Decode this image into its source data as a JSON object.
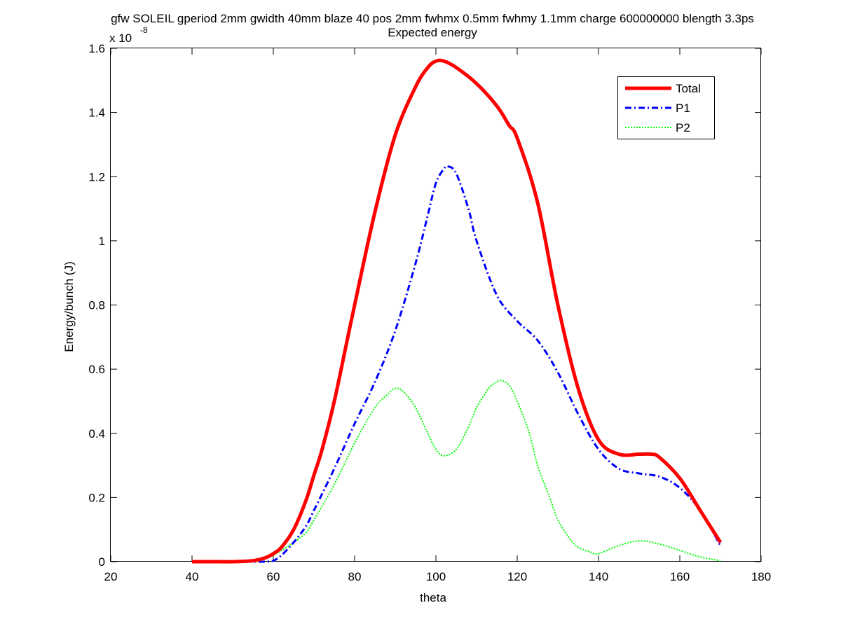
{
  "chart_data": {
    "type": "line",
    "title": "gfw SOLEIL gperiod 2mm gwidth 40mm blaze 40 pos 2mm fwhmx 0.5mm fwhmy 1.1mm charge 600000000 blength 3.3ps",
    "subtitle": "Expected energy",
    "xlabel": "theta",
    "ylabel": "Energy/bunch (J)",
    "y_exponent_label": "x 10",
    "y_exponent": "-8",
    "xlim": [
      20,
      180
    ],
    "ylim": [
      0,
      1.6
    ],
    "y_scale_factor": 1e-08,
    "x_ticks": [
      "20",
      "40",
      "60",
      "80",
      "100",
      "120",
      "140",
      "160",
      "180"
    ],
    "y_ticks": [
      "0",
      "0.2",
      "0.4",
      "0.6",
      "0.8",
      "1",
      "1.2",
      "1.4",
      "1.6"
    ],
    "grid": false,
    "legend_position": "top-right",
    "series": [
      {
        "name": "Total",
        "color": "#ff0000",
        "style": "solid",
        "x": [
          40,
          45,
          50,
          55,
          58,
          60,
          62,
          65,
          68,
          70,
          72,
          75,
          78,
          80,
          85,
          90,
          95,
          98,
          100,
          102,
          105,
          110,
          115,
          118,
          120,
          125,
          130,
          135,
          140,
          145,
          150,
          153,
          155,
          160,
          165,
          170
        ],
        "y": [
          0,
          0,
          0,
          0.003,
          0.012,
          0.025,
          0.045,
          0.1,
          0.19,
          0.27,
          0.35,
          0.5,
          0.68,
          0.8,
          1.09,
          1.33,
          1.48,
          1.54,
          1.56,
          1.56,
          1.54,
          1.49,
          1.42,
          1.36,
          1.32,
          1.12,
          0.8,
          0.54,
          0.38,
          0.335,
          0.335,
          0.335,
          0.325,
          0.26,
          0.16,
          0.06
        ]
      },
      {
        "name": "P1",
        "color": "#0000ff",
        "style": "dashdot",
        "x": [
          40,
          45,
          50,
          55,
          58,
          60,
          62,
          65,
          68,
          70,
          75,
          80,
          85,
          90,
          95,
          98,
          100,
          102,
          103,
          105,
          108,
          110,
          115,
          120,
          125,
          130,
          135,
          140,
          145,
          150,
          155,
          160,
          165,
          170
        ],
        "y": [
          0,
          0,
          0,
          0,
          0,
          0.003,
          0.02,
          0.06,
          0.11,
          0.16,
          0.29,
          0.43,
          0.56,
          0.72,
          0.93,
          1.08,
          1.18,
          1.225,
          1.232,
          1.21,
          1.1,
          1.0,
          0.83,
          0.75,
          0.69,
          0.59,
          0.46,
          0.35,
          0.29,
          0.275,
          0.265,
          0.23,
          0.16,
          0.05
        ]
      },
      {
        "name": "P2",
        "color": "#00ff00",
        "style": "dotted",
        "x": [
          60,
          62,
          65,
          68,
          70,
          75,
          80,
          85,
          88,
          90,
          92,
          95,
          98,
          100,
          102,
          105,
          108,
          110,
          113,
          115,
          116,
          118,
          120,
          123,
          125,
          128,
          130,
          133,
          135,
          138,
          140,
          145,
          150,
          155,
          160,
          165,
          170
        ],
        "y": [
          0.02,
          0.035,
          0.06,
          0.09,
          0.13,
          0.24,
          0.37,
          0.48,
          0.52,
          0.54,
          0.53,
          0.48,
          0.4,
          0.35,
          0.33,
          0.35,
          0.42,
          0.48,
          0.54,
          0.56,
          0.565,
          0.55,
          0.5,
          0.4,
          0.3,
          0.2,
          0.13,
          0.07,
          0.045,
          0.03,
          0.025,
          0.05,
          0.065,
          0.055,
          0.035,
          0.015,
          0.003
        ]
      }
    ]
  }
}
